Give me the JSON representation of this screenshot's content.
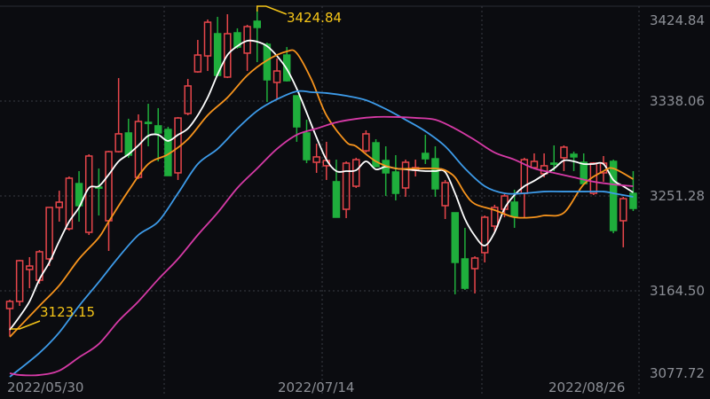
{
  "chart_data": {
    "type": "candlestick",
    "title": "",
    "xlabel": "",
    "ylabel": "",
    "ylim": [
      3077.72,
      3424.84
    ],
    "yticks": [
      "3424.84",
      "3338.06",
      "3251.28",
      "3164.50",
      "3077.72"
    ],
    "xticks": [
      "2022/05/30",
      "2022/07/14",
      "2022/08/26"
    ],
    "grid": true,
    "colors": {
      "up": "#e8464b",
      "down": "#1fae3c",
      "background": "#0b0c10",
      "axis_text": "#8c8f96",
      "annotation": "#f5c518"
    },
    "annotations": {
      "max": "3424.84",
      "min": "3123.15"
    },
    "candles_ohlc": [
      [
        3148.3,
        3156.4,
        3123.15,
        3154.8
      ],
      [
        3154.8,
        3192.9,
        3150.7,
        3192.1
      ],
      [
        3184.0,
        3195.3,
        3166.9,
        3187.2
      ],
      [
        3174.2,
        3201.8,
        3171.0,
        3200.2
      ],
      [
        3193.7,
        3240.8,
        3187.2,
        3240.8
      ],
      [
        3240.8,
        3256.1,
        3227.8,
        3245.6
      ],
      [
        3221.3,
        3269.1,
        3219.7,
        3267.5
      ],
      [
        3262.6,
        3274.0,
        3227.8,
        3242.4
      ],
      [
        3218.0,
        3289.4,
        3215.6,
        3287.8
      ],
      [
        3259.4,
        3276.4,
        3233.4,
        3258.6
      ],
      [
        3228.6,
        3292.6,
        3201.0,
        3291.8
      ],
      [
        3291.8,
        3359.1,
        3291.0,
        3308.1
      ],
      [
        3308.9,
        3321.9,
        3286.2,
        3288.6
      ],
      [
        3268.3,
        3325.9,
        3266.7,
        3319.4
      ],
      [
        3318.6,
        3335.6,
        3296.7,
        3317.8
      ],
      [
        3315.4,
        3331.6,
        3282.9,
        3308.9
      ],
      [
        3312.1,
        3314.5,
        3269.9,
        3269.9
      ],
      [
        3272.4,
        3323.5,
        3265.9,
        3322.6
      ],
      [
        3326.7,
        3358.3,
        3325.1,
        3351.9
      ],
      [
        3364.8,
        3394.0,
        3364.0,
        3380.2
      ],
      [
        3379.4,
        3412.7,
        3365.6,
        3410.2
      ],
      [
        3399.7,
        3415.1,
        3360.8,
        3361.6
      ],
      [
        3360.0,
        3417.5,
        3359.1,
        3399.7
      ],
      [
        3400.5,
        3404.6,
        3385.9,
        3387.5
      ],
      [
        3381.9,
        3407.8,
        3365.6,
        3406.2
      ],
      [
        3411.1,
        3424.84,
        3373.7,
        3405.4
      ],
      [
        3390.0,
        3391.6,
        3337.3,
        3357.5
      ],
      [
        3355.1,
        3377.0,
        3339.7,
        3365.6
      ],
      [
        3380.2,
        3387.5,
        3355.9,
        3356.7
      ],
      [
        3342.9,
        3342.9,
        3300.8,
        3314.5
      ],
      [
        3308.9,
        3321.0,
        3281.3,
        3284.5
      ],
      [
        3282.1,
        3299.1,
        3272.4,
        3287.0
      ],
      [
        3278.9,
        3300.8,
        3265.9,
        3283.7
      ],
      [
        3264.3,
        3284.5,
        3231.8,
        3231.8
      ],
      [
        3239.1,
        3282.9,
        3231.0,
        3281.3
      ],
      [
        3260.2,
        3286.2,
        3258.6,
        3284.5
      ],
      [
        3292.6,
        3311.3,
        3291.0,
        3308.1
      ],
      [
        3299.9,
        3303.2,
        3278.1,
        3278.1
      ],
      [
        3283.7,
        3296.7,
        3251.3,
        3272.4
      ],
      [
        3273.2,
        3288.6,
        3247.2,
        3253.7
      ],
      [
        3258.6,
        3284.5,
        3250.5,
        3282.1
      ],
      [
        3274.8,
        3284.5,
        3269.1,
        3277.2
      ],
      [
        3290.2,
        3307.2,
        3280.5,
        3285.3
      ],
      [
        3285.3,
        3296.7,
        3250.5,
        3257.8
      ],
      [
        3242.4,
        3265.9,
        3230.2,
        3263.5
      ],
      [
        3235.9,
        3235.9,
        3161.3,
        3190.5
      ],
      [
        3193.7,
        3222.1,
        3165.3,
        3166.9
      ],
      [
        3184.8,
        3196.1,
        3162.1,
        3194.5
      ],
      [
        3199.4,
        3233.4,
        3190.5,
        3231.8
      ],
      [
        3223.7,
        3243.2,
        3218.0,
        3240.8
      ],
      [
        3239.1,
        3252.9,
        3231.8,
        3251.3
      ],
      [
        3245.6,
        3257.0,
        3222.1,
        3232.6
      ],
      [
        3253.7,
        3286.2,
        3231.8,
        3284.5
      ],
      [
        3277.2,
        3290.2,
        3276.4,
        3282.9
      ],
      [
        3271.6,
        3290.2,
        3268.3,
        3278.9
      ],
      [
        3281.3,
        3297.5,
        3274.0,
        3280.5
      ],
      [
        3286.2,
        3297.5,
        3274.0,
        3295.9
      ],
      [
        3289.4,
        3291.8,
        3274.0,
        3287.0
      ],
      [
        3282.1,
        3290.2,
        3262.6,
        3262.6
      ],
      [
        3253.7,
        3282.1,
        3252.1,
        3281.3
      ],
      [
        3272.4,
        3287.8,
        3264.3,
        3281.3
      ],
      [
        3282.9,
        3284.5,
        3217.2,
        3219.7
      ],
      [
        3228.6,
        3250.5,
        3204.3,
        3248.8
      ],
      [
        3253.7,
        3274.0,
        3237.5,
        3239.9
      ]
    ],
    "moving_averages": [
      {
        "color": "#ffffff",
        "points": [
          [
            1,
            3128.8
          ],
          [
            2,
            3141.0
          ],
          [
            3,
            3154.8
          ],
          [
            4,
            3175.0
          ],
          [
            5,
            3190.5
          ],
          [
            6,
            3209.9
          ],
          [
            7,
            3227.8
          ],
          [
            8,
            3240.8
          ],
          [
            9,
            3258.6
          ],
          [
            10,
            3260.2
          ],
          [
            11,
            3270.8
          ],
          [
            12,
            3282.9
          ],
          [
            13,
            3289.4
          ],
          [
            14,
            3297.5
          ],
          [
            15,
            3306.4
          ],
          [
            16,
            3307.2
          ],
          [
            17,
            3301.6
          ],
          [
            18,
            3307.2
          ],
          [
            19,
            3312.9
          ],
          [
            20,
            3325.1
          ],
          [
            21,
            3341.3
          ],
          [
            22,
            3362.4
          ],
          [
            23,
            3380.2
          ],
          [
            24,
            3388.3
          ],
          [
            25,
            3393.2
          ],
          [
            26,
            3392.4
          ],
          [
            27,
            3388.3
          ],
          [
            28,
            3379.4
          ],
          [
            29,
            3367.3
          ],
          [
            30,
            3349.4
          ],
          [
            31,
            3327.5
          ],
          [
            32,
            3304.8
          ],
          [
            33,
            3284.5
          ],
          [
            34,
            3274.0
          ],
          [
            35,
            3274.0
          ],
          [
            36,
            3274.8
          ],
          [
            37,
            3282.9
          ],
          [
            38,
            3275.6
          ],
          [
            39,
            3278.1
          ],
          [
            40,
            3276.4
          ],
          [
            41,
            3275.6
          ],
          [
            42,
            3274.8
          ],
          [
            43,
            3274.0
          ],
          [
            44,
            3274.0
          ],
          [
            45,
            3273.2
          ],
          [
            46,
            3253.7
          ],
          [
            47,
            3230.2
          ],
          [
            48,
            3214.8
          ],
          [
            49,
            3205.9
          ],
          [
            50,
            3218.0
          ],
          [
            51,
            3239.9
          ],
          [
            52,
            3252.1
          ],
          [
            53,
            3260.2
          ],
          [
            54,
            3265.1
          ],
          [
            55,
            3270.8
          ],
          [
            56,
            3276.4
          ],
          [
            57,
            3283.7
          ],
          [
            58,
            3282.9
          ],
          [
            59,
            3280.5
          ],
          [
            60,
            3280.5
          ],
          [
            61,
            3280.5
          ],
          [
            62,
            3265.9
          ],
          [
            63,
            3260.2
          ],
          [
            64,
            3254.5
          ]
        ]
      },
      {
        "color": "#f7941d",
        "points": [
          [
            1,
            3122.3
          ],
          [
            4,
            3150.7
          ],
          [
            6,
            3169.4
          ],
          [
            8,
            3193.7
          ],
          [
            10,
            3213.2
          ],
          [
            11,
            3227.8
          ],
          [
            13,
            3256.1
          ],
          [
            15,
            3280.5
          ],
          [
            17,
            3289.4
          ],
          [
            19,
            3303.2
          ],
          [
            21,
            3325.1
          ],
          [
            23,
            3341.3
          ],
          [
            25,
            3361.6
          ],
          [
            27,
            3375.4
          ],
          [
            29,
            3383.5
          ],
          [
            30,
            3381.9
          ],
          [
            31.5,
            3357.5
          ],
          [
            33,
            3325.1
          ],
          [
            35,
            3300.8
          ],
          [
            36,
            3296.7
          ],
          [
            38,
            3282.9
          ],
          [
            40,
            3276.4
          ],
          [
            42,
            3276.4
          ],
          [
            44,
            3276.4
          ],
          [
            45,
            3274.8
          ],
          [
            46,
            3268.3
          ],
          [
            47,
            3253.7
          ],
          [
            48,
            3244.0
          ],
          [
            50,
            3238.3
          ],
          [
            52,
            3231.8
          ],
          [
            54,
            3231.8
          ],
          [
            55,
            3233.4
          ],
          [
            57,
            3235.9
          ],
          [
            59,
            3261.8
          ],
          [
            61,
            3274.0
          ],
          [
            62,
            3276.4
          ],
          [
            64,
            3266.7
          ]
        ]
      },
      {
        "color": "#3d9be9",
        "points": [
          [
            1,
            3085.8
          ],
          [
            4,
            3107.7
          ],
          [
            6,
            3126.4
          ],
          [
            8,
            3150.7
          ],
          [
            10,
            3172.6
          ],
          [
            12,
            3195.3
          ],
          [
            14,
            3215.6
          ],
          [
            16,
            3227.8
          ],
          [
            18,
            3253.7
          ],
          [
            20,
            3280.5
          ],
          [
            22,
            3294.3
          ],
          [
            24,
            3312.9
          ],
          [
            26,
            3329.1
          ],
          [
            28,
            3339.7
          ],
          [
            30,
            3347.0
          ],
          [
            31.5,
            3346.2
          ],
          [
            33,
            3345.4
          ],
          [
            35,
            3342.9
          ],
          [
            37,
            3338.9
          ],
          [
            39,
            3330.8
          ],
          [
            41,
            3321.0
          ],
          [
            43,
            3310.5
          ],
          [
            45,
            3296.7
          ],
          [
            47,
            3276.4
          ],
          [
            49,
            3260.2
          ],
          [
            51,
            3253.7
          ],
          [
            53,
            3253.7
          ],
          [
            55,
            3255.3
          ],
          [
            57,
            3255.3
          ],
          [
            59,
            3255.3
          ],
          [
            61,
            3255.3
          ],
          [
            62,
            3253.7
          ],
          [
            64,
            3250.5
          ]
        ]
      },
      {
        "color": "#d63aa6",
        "points": [
          [
            1,
            3089.1
          ],
          [
            2,
            3087.5
          ],
          [
            4,
            3087.5
          ],
          [
            6,
            3091.5
          ],
          [
            8,
            3103.7
          ],
          [
            10,
            3115.9
          ],
          [
            12,
            3137.0
          ],
          [
            14,
            3154.8
          ],
          [
            16,
            3175.0
          ],
          [
            18,
            3193.7
          ],
          [
            20,
            3215.6
          ],
          [
            22,
            3235.9
          ],
          [
            24,
            3258.6
          ],
          [
            26,
            3276.4
          ],
          [
            28,
            3294.3
          ],
          [
            30,
            3307.2
          ],
          [
            32,
            3312.9
          ],
          [
            34,
            3318.6
          ],
          [
            36,
            3321.8
          ],
          [
            38,
            3323.5
          ],
          [
            40,
            3323.5
          ],
          [
            42,
            3322.7
          ],
          [
            44,
            3321.0
          ],
          [
            46,
            3312.9
          ],
          [
            48,
            3302.4
          ],
          [
            50,
            3291.0
          ],
          [
            52,
            3284.5
          ],
          [
            54,
            3276.4
          ],
          [
            56,
            3272.4
          ],
          [
            58,
            3268.3
          ],
          [
            60,
            3264.3
          ],
          [
            62,
            3261.8
          ],
          [
            64,
            3260.2
          ]
        ]
      }
    ]
  }
}
